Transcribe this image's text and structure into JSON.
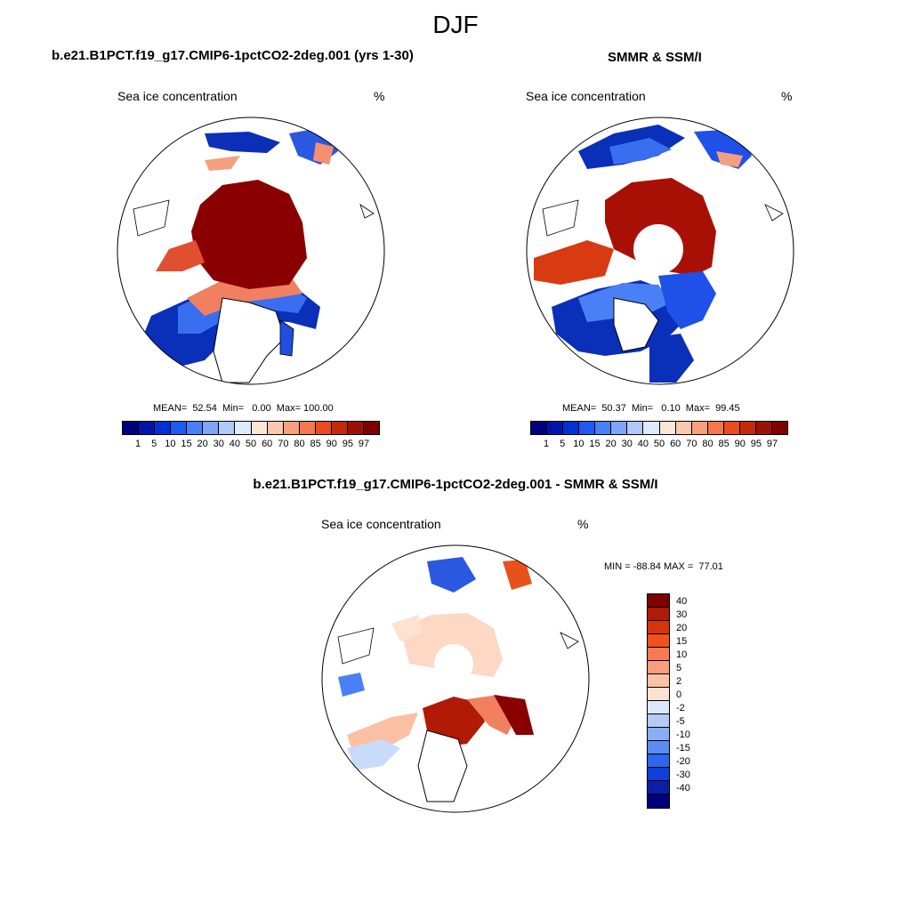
{
  "page_title": "DJF",
  "panels": {
    "model": {
      "title": "b.e21.B1PCT.f19_g17.CMIP6-1pctCO2-2deg.001 (yrs 1-30)",
      "left_label": "Sea ice concentration",
      "right_label": "%",
      "stats": "MEAN=  52.54  Min=   0.00  Max= 100.00"
    },
    "obs": {
      "title": "SMMR & SSM/I",
      "left_label": "Sea ice concentration",
      "right_label": "%",
      "stats": "MEAN=  50.37  Min=   0.10  Max=  99.45"
    },
    "diff": {
      "title": "b.e21.B1PCT.f19_g17.CMIP6-1pctCO2-2deg.001 - SMMR & SSM/I",
      "left_label": "Sea ice concentration",
      "right_label": "%",
      "minmax": "MIN = -88.84 MAX =  77.01"
    }
  },
  "colorbar_top": {
    "labels": [
      "1",
      "5",
      "10",
      "15",
      "20",
      "30",
      "40",
      "50",
      "60",
      "70",
      "80",
      "85",
      "90",
      "95",
      "97"
    ],
    "colors": [
      "#00007f",
      "#0014a8",
      "#0032d2",
      "#1e5af0",
      "#4a80f5",
      "#7ea6f8",
      "#b0c8fa",
      "#dde9fc",
      "#fde6d6",
      "#fbc7ad",
      "#f8a07e",
      "#f4784e",
      "#ea4c22",
      "#c42a0a",
      "#9a1206",
      "#7f0000"
    ]
  },
  "colorbar_diff": {
    "labels": [
      "40",
      "30",
      "20",
      "15",
      "10",
      "5",
      "2",
      "0",
      "-2",
      "-5",
      "-10",
      "-15",
      "-20",
      "-30",
      "-40"
    ],
    "colors": [
      "#7f0000",
      "#b01a06",
      "#d8340c",
      "#f2501c",
      "#f87a50",
      "#fa9e7c",
      "#fcc2a6",
      "#fde2d2",
      "#dce8fc",
      "#b4cbf9",
      "#88aef6",
      "#5a8cf3",
      "#2e66ee",
      "#0f3ed8",
      "#0a1ea8",
      "#00007f"
    ]
  },
  "icons": {
    "map_projection": "polar-stereographic-north"
  }
}
